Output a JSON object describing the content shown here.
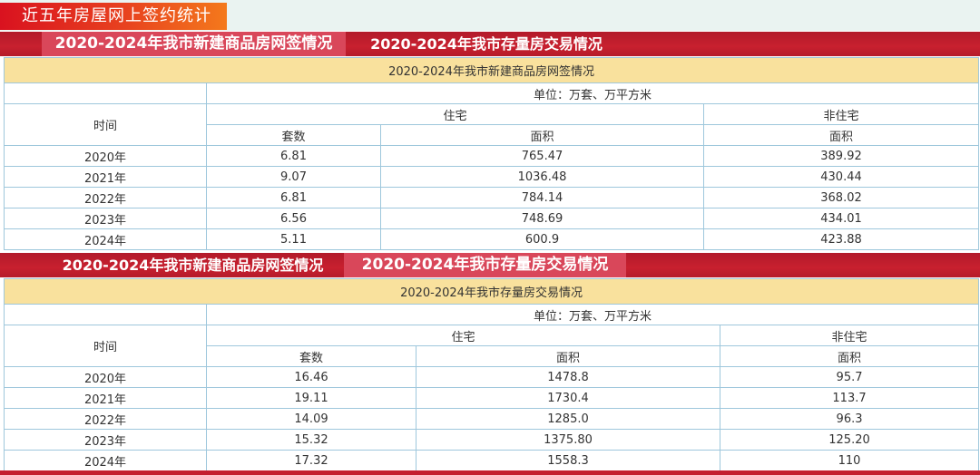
{
  "header": {
    "title": "近五年房屋网上签约统计"
  },
  "tab_bar_1": {
    "tabs": [
      {
        "label": "2020-2024年我市新建商品房网签情况",
        "active": true
      },
      {
        "label": "2020-2024年我市存量房交易情况",
        "active": false
      }
    ]
  },
  "table_new": {
    "caption": "2020-2024年我市新建商品房网签情况",
    "unit": "单位：万套、万平方米",
    "col_time": "时间",
    "col_residential": "住宅",
    "col_nonresidential": "非住宅",
    "sub_count": "套数",
    "sub_area": "面积",
    "sub_area_nonres": "面积",
    "rows": [
      {
        "year": "2020年",
        "count": "6.81",
        "area": "765.47",
        "nonres_area": "389.92"
      },
      {
        "year": "2021年",
        "count": "9.07",
        "area": "1036.48",
        "nonres_area": "430.44"
      },
      {
        "year": "2022年",
        "count": "6.81",
        "area": "784.14",
        "nonres_area": "368.02"
      },
      {
        "year": "2023年",
        "count": "6.56",
        "area": "748.69",
        "nonres_area": "434.01"
      },
      {
        "year": "2024年",
        "count": "5.11",
        "area": "600.9",
        "nonres_area": "423.88"
      }
    ]
  },
  "tab_bar_2": {
    "tabs": [
      {
        "label": "2020-2024年我市新建商品房网签情况",
        "active": false
      },
      {
        "label": "2020-2024年我市存量房交易情况",
        "active": true
      }
    ]
  },
  "table_existing": {
    "caption": "2020-2024年我市存量房交易情况",
    "unit": "单位：万套、万平方米",
    "col_time": "时间",
    "col_residential": "住宅",
    "col_nonresidential": "非住宅",
    "sub_count": "套数",
    "sub_area": "面积",
    "sub_area_nonres": "面积",
    "rows": [
      {
        "year": "2020年",
        "count": "16.46",
        "area": "1478.8",
        "nonres_area": "95.7"
      },
      {
        "year": "2021年",
        "count": "19.11",
        "area": "1730.4",
        "nonres_area": "113.7"
      },
      {
        "year": "2022年",
        "count": "14.09",
        "area": "1285.0",
        "nonres_area": "96.3"
      },
      {
        "year": "2023年",
        "count": "15.32",
        "area": "1375.80",
        "nonres_area": "125.20"
      },
      {
        "year": "2024年",
        "count": "17.32",
        "area": "1558.3",
        "nonres_area": "110"
      }
    ]
  },
  "colors": {
    "brand_red": "#c8202f",
    "active_tab": "#d9475a",
    "caption_bg": "#f9e19d",
    "grid_line": "#9ec7dc"
  }
}
